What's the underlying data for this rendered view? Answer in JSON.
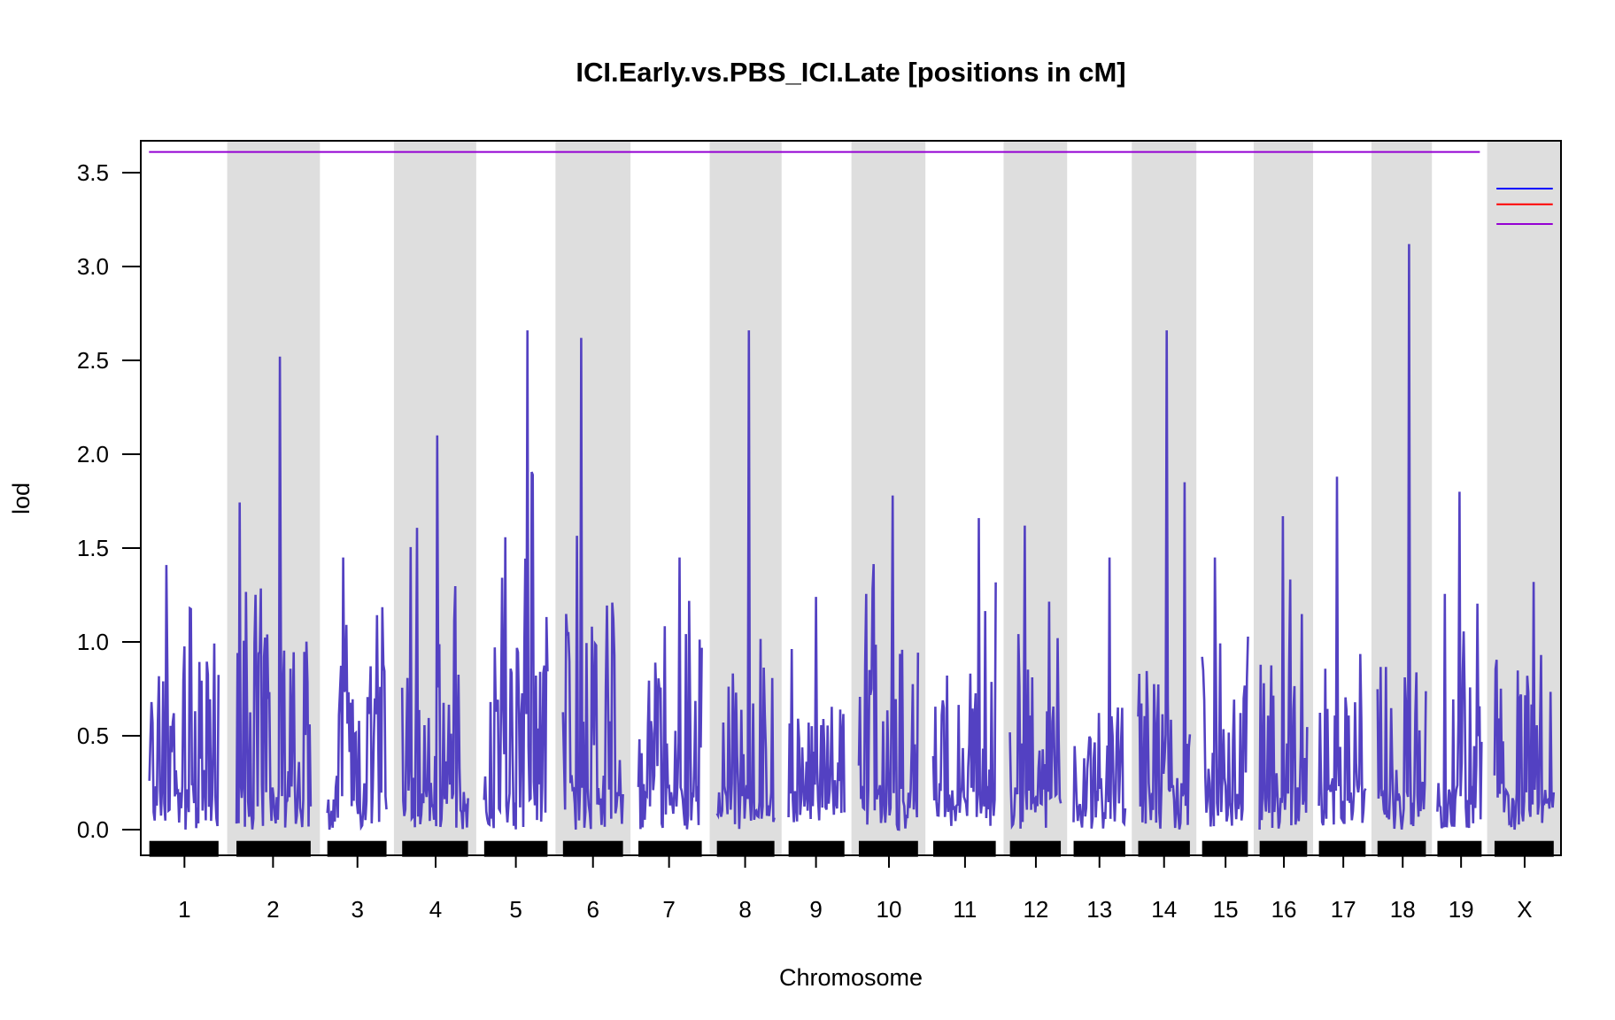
{
  "chart_data": {
    "type": "line",
    "title": "ICI.Early.vs.PBS_ICI.Late [positions in cM]",
    "xlabel": "Chromosome",
    "ylabel": "lod",
    "ylim": [
      -0.14,
      3.67
    ],
    "yticks": [
      "0.0",
      "0.5",
      "1.0",
      "1.5",
      "2.0",
      "2.5",
      "3.0",
      "3.5"
    ],
    "ytick_values": [
      0,
      0.5,
      1.0,
      1.5,
      2.0,
      2.5,
      3.0,
      3.5
    ],
    "chromosomes": [
      "1",
      "2",
      "3",
      "4",
      "5",
      "6",
      "7",
      "8",
      "9",
      "10",
      "11",
      "12",
      "13",
      "14",
      "15",
      "16",
      "17",
      "18",
      "19",
      "X"
    ],
    "peak_lod": [
      1.41,
      2.52,
      1.45,
      2.1,
      2.66,
      2.62,
      1.45,
      2.66,
      1.24,
      1.78,
      1.66,
      1.62,
      1.45,
      2.66,
      1.45,
      1.67,
      1.88,
      3.12,
      1.8,
      1.32
    ],
    "typical_lod": [
      0.9,
      1.3,
      0.9,
      0.9,
      1.0,
      1.4,
      0.9,
      0.9,
      0.7,
      1.0,
      0.9,
      0.9,
      0.7,
      0.9,
      0.9,
      0.9,
      0.9,
      0.9,
      0.9,
      0.8
    ],
    "threshold": 3.61,
    "series_color": "#5341C2",
    "threshold_color": "#9400D3",
    "legend": {
      "placement": "top-right",
      "colors": [
        "#0000FF",
        "#FF0000",
        "#9400D3"
      ]
    },
    "grid": false
  }
}
